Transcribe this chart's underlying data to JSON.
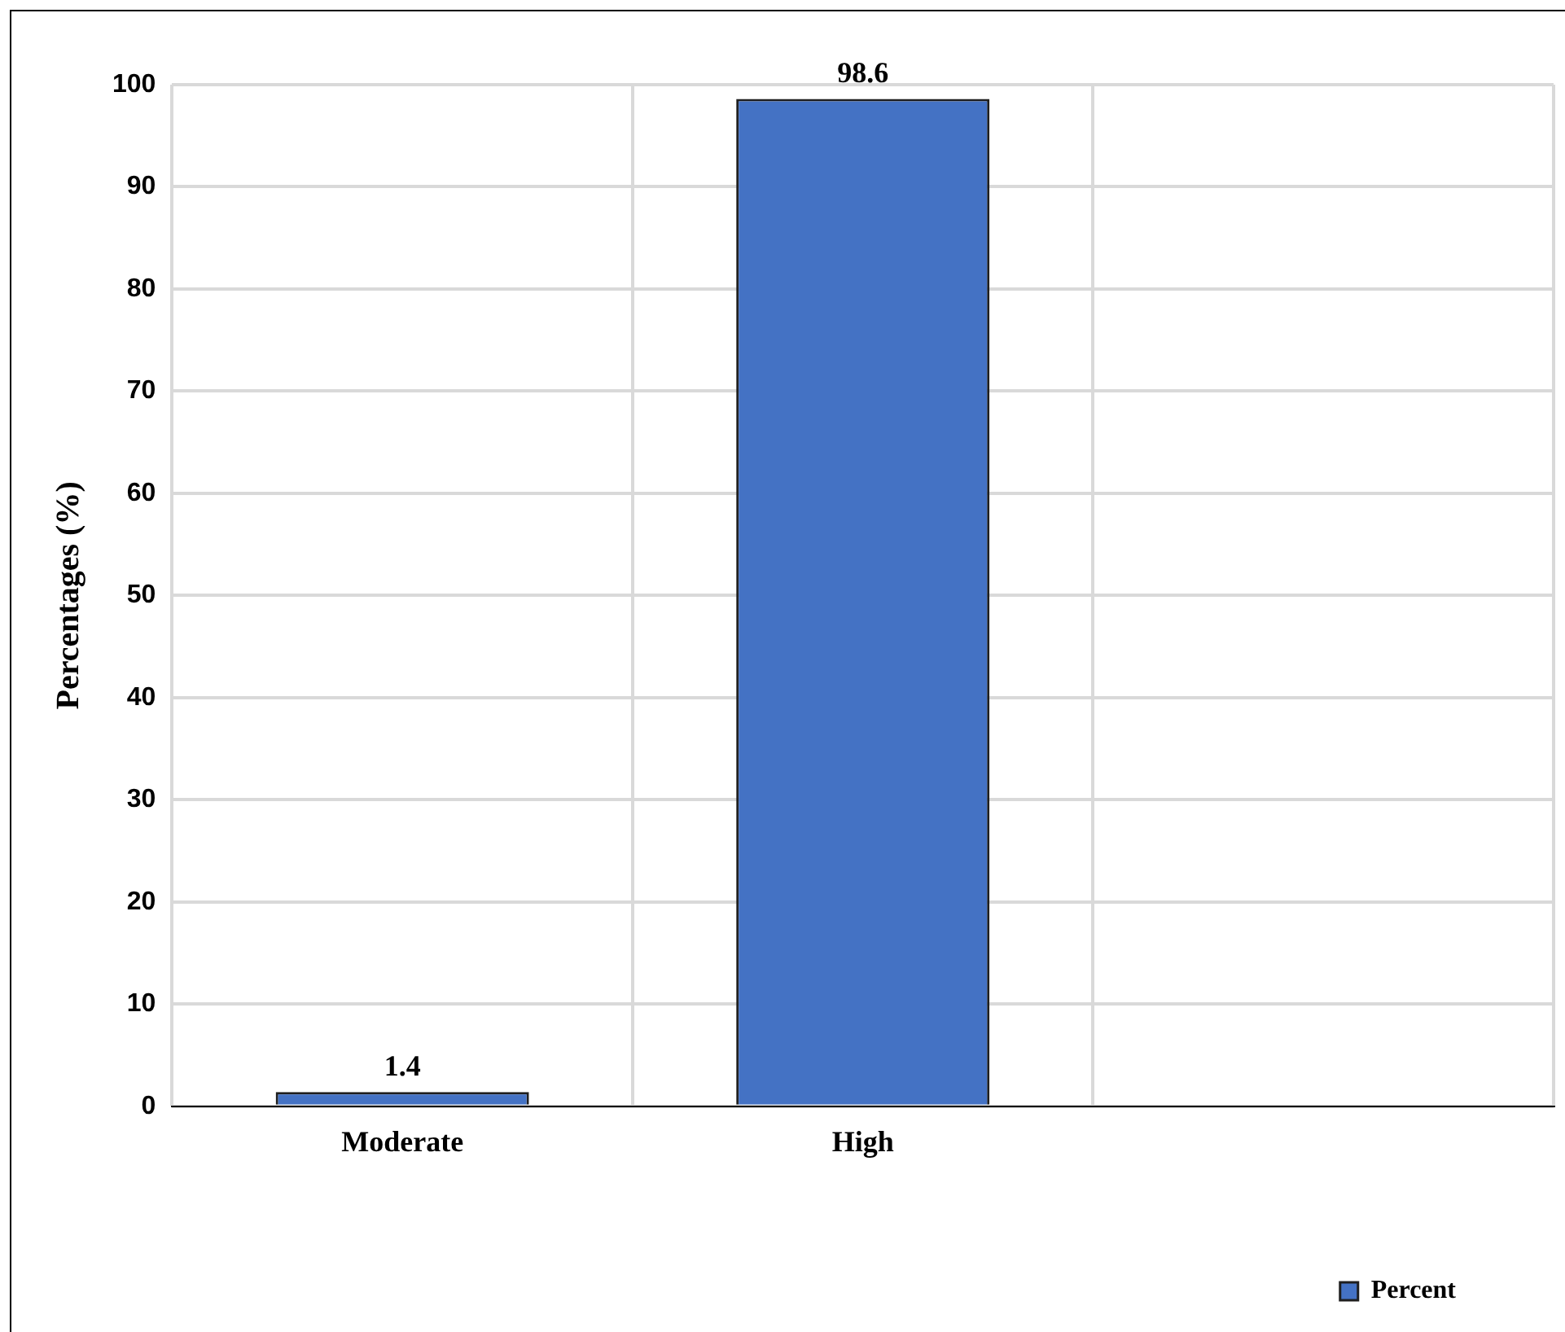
{
  "chart_data": {
    "type": "bar",
    "ylabel": "Percentages (%)",
    "categories": [
      "Moderate",
      "High",
      null
    ],
    "series": [
      {
        "name": "Percent",
        "color": "#4472c4",
        "values": [
          1.4,
          98.6,
          null
        ]
      }
    ],
    "ylim": [
      0,
      100
    ],
    "yticks": [
      0,
      10,
      20,
      30,
      40,
      50,
      60,
      70,
      80,
      90,
      100
    ],
    "grid": true,
    "legend": "bottom right",
    "data_labels": true
  }
}
